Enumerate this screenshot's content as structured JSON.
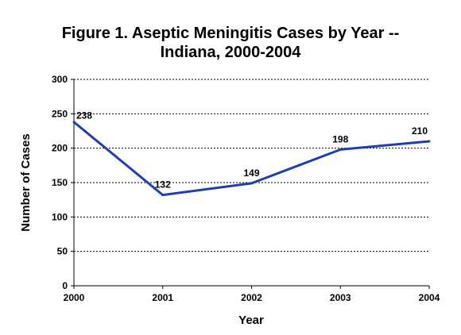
{
  "chart_data": {
    "type": "line",
    "title_line1": "Figure 1.  Aseptic Meningitis Cases by Year --",
    "title_line2": "Indiana, 2000-2004",
    "xlabel": "Year",
    "ylabel": "Number of Cases",
    "categories": [
      "2000",
      "2001",
      "2002",
      "2003",
      "2004"
    ],
    "series": [
      {
        "values": [
          238,
          132,
          149,
          198,
          210
        ],
        "color": "#1f3fb0"
      }
    ],
    "data_labels": [
      "238",
      "132",
      "149",
      "198",
      "210"
    ],
    "ylim": [
      0,
      300
    ],
    "yticks": [
      0,
      50,
      100,
      150,
      200,
      250,
      300
    ],
    "ytick_labels": [
      "0",
      "50",
      "100",
      "150",
      "200",
      "250",
      "300"
    ],
    "grid": "horizontal dotted",
    "legend": "none"
  }
}
